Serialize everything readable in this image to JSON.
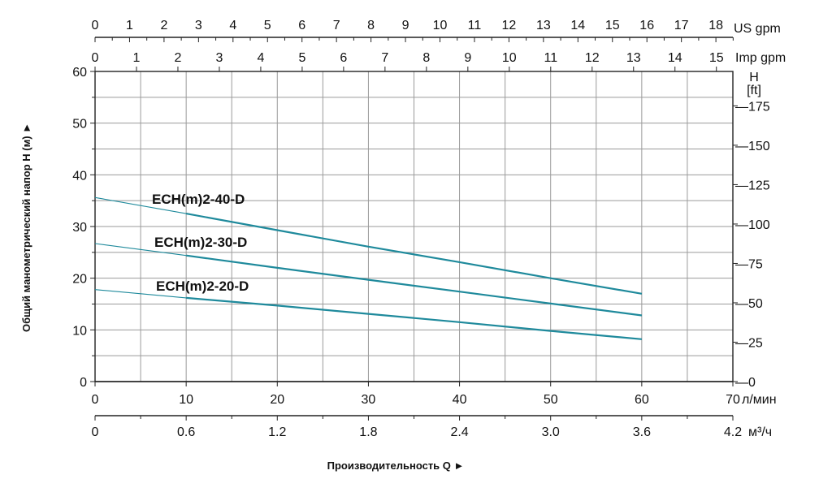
{
  "chart_data": {
    "type": "line",
    "xlabel": "Производительность Q ►",
    "ylabel": "Общий манометрический напор H (м) ►",
    "xlim": [
      0,
      70
    ],
    "ylim": [
      0,
      60
    ],
    "grid": true,
    "x_unit": "л/мин",
    "x_ticks": [
      0,
      10,
      20,
      30,
      40,
      50,
      60,
      70
    ],
    "y_ticks": [
      0,
      10,
      20,
      30,
      40,
      50,
      60
    ],
    "secondary_axes": {
      "m3h": {
        "unit": "м³/ч",
        "ticks": [
          "0",
          "0.6",
          "1.2",
          "1.8",
          "2.4",
          "3.0",
          "3.6",
          "4.2"
        ]
      },
      "us_gpm": {
        "unit": "US gpm",
        "ticks": [
          0,
          1,
          2,
          3,
          4,
          5,
          6,
          7,
          8,
          9,
          10,
          11,
          12,
          13,
          14,
          15,
          16,
          17,
          18
        ]
      },
      "imp_gpm": {
        "unit": "Imp gpm",
        "ticks": [
          0,
          1,
          2,
          3,
          4,
          5,
          6,
          7,
          8,
          9,
          10,
          11,
          12,
          13,
          14,
          15
        ]
      },
      "ft": {
        "title": "H",
        "unit": "[ft]",
        "ticks": [
          0,
          25,
          50,
          75,
          100,
          125,
          150,
          175
        ]
      }
    },
    "series": [
      {
        "name": "ECH(m)2-40-D",
        "x": [
          0,
          10,
          20,
          30,
          40,
          50,
          60
        ],
        "y": [
          35.6,
          32.5,
          29.3,
          26.1,
          23.1,
          20.0,
          17.0
        ]
      },
      {
        "name": "ECH(m)2-30-D",
        "x": [
          0,
          10,
          20,
          30,
          40,
          50,
          60
        ],
        "y": [
          26.7,
          24.4,
          22.0,
          19.7,
          17.4,
          15.1,
          12.8
        ]
      },
      {
        "name": "ECH(m)2-20-D",
        "x": [
          0,
          10,
          20,
          30,
          40,
          50,
          60
        ],
        "y": [
          17.8,
          16.2,
          14.7,
          13.1,
          11.5,
          9.8,
          8.2
        ]
      }
    ],
    "line_color": "#1f8a9c"
  }
}
